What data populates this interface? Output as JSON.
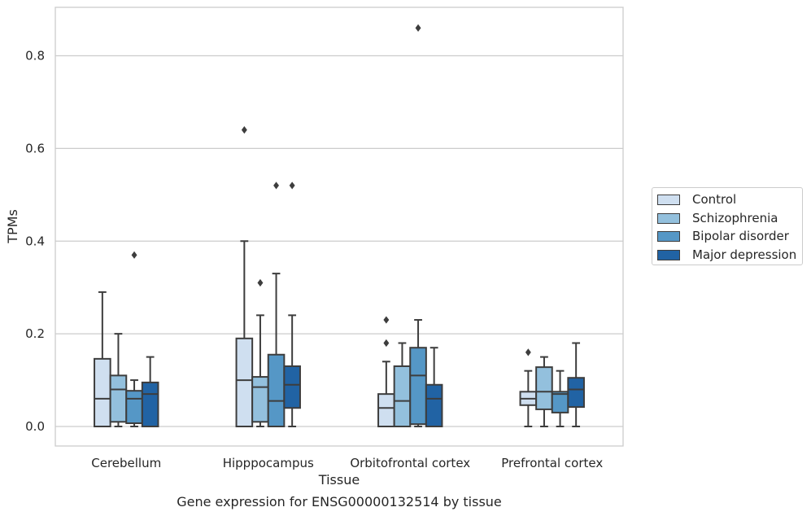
{
  "chart_data": {
    "type": "box",
    "title": "",
    "caption": "Gene expression for ENSG00000132514 by tissue",
    "xlabel": "Tissue",
    "ylabel": "TPMs",
    "ylim": [
      -0.04,
      0.905
    ],
    "yticks": [
      "0.0",
      "0.2",
      "0.4",
      "0.6",
      "0.8"
    ],
    "ytick_values": [
      0.0,
      0.2,
      0.4,
      0.6,
      0.8
    ],
    "grid": "horizontal",
    "legend_position": "right",
    "categories": [
      "Cerebellum",
      "Hipppocampus",
      "Orbitofrontal cortex",
      "Prefrontal cortex"
    ],
    "series": [
      {
        "name": "Control",
        "color": "#cfdff0",
        "boxes": [
          {
            "whislo": 0.0,
            "q1": 0.0,
            "med": 0.06,
            "q3": 0.146,
            "whishi": 0.29,
            "fliers": []
          },
          {
            "whislo": 0.0,
            "q1": 0.0,
            "med": 0.1,
            "q3": 0.19,
            "whishi": 0.4,
            "fliers": [
              0.64
            ]
          },
          {
            "whislo": 0.0,
            "q1": 0.0,
            "med": 0.04,
            "q3": 0.07,
            "whishi": 0.14,
            "fliers": [
              0.18,
              0.23
            ]
          },
          {
            "whislo": 0.0,
            "q1": 0.046,
            "med": 0.06,
            "q3": 0.075,
            "whishi": 0.12,
            "fliers": [
              0.16
            ]
          }
        ]
      },
      {
        "name": "Schizophrenia",
        "color": "#93c0dd",
        "boxes": [
          {
            "whislo": 0.0,
            "q1": 0.01,
            "med": 0.08,
            "q3": 0.11,
            "whishi": 0.2,
            "fliers": []
          },
          {
            "whislo": 0.0,
            "q1": 0.01,
            "med": 0.085,
            "q3": 0.107,
            "whishi": 0.24,
            "fliers": [
              0.31
            ]
          },
          {
            "whislo": 0.0,
            "q1": 0.0,
            "med": 0.055,
            "q3": 0.13,
            "whishi": 0.18,
            "fliers": []
          },
          {
            "whislo": 0.0,
            "q1": 0.037,
            "med": 0.075,
            "q3": 0.128,
            "whishi": 0.15,
            "fliers": []
          }
        ]
      },
      {
        "name": "Bipolar disorder",
        "color": "#5597c6",
        "boxes": [
          {
            "whislo": 0.0,
            "q1": 0.007,
            "med": 0.06,
            "q3": 0.077,
            "whishi": 0.1,
            "fliers": [
              0.37
            ]
          },
          {
            "whislo": 0.0,
            "q1": 0.0,
            "med": 0.055,
            "q3": 0.155,
            "whishi": 0.33,
            "fliers": [
              0.52
            ]
          },
          {
            "whislo": 0.0,
            "q1": 0.005,
            "med": 0.11,
            "q3": 0.17,
            "whishi": 0.23,
            "fliers": [
              0.86
            ]
          },
          {
            "whislo": 0.0,
            "q1": 0.03,
            "med": 0.07,
            "q3": 0.075,
            "whishi": 0.12,
            "fliers": []
          }
        ]
      },
      {
        "name": "Major depression",
        "color": "#2163a4",
        "boxes": [
          {
            "whislo": 0.0,
            "q1": 0.0,
            "med": 0.07,
            "q3": 0.095,
            "whishi": 0.15,
            "fliers": []
          },
          {
            "whislo": 0.0,
            "q1": 0.04,
            "med": 0.09,
            "q3": 0.13,
            "whishi": 0.24,
            "fliers": [
              0.52
            ]
          },
          {
            "whislo": 0.0,
            "q1": 0.0,
            "med": 0.06,
            "q3": 0.09,
            "whishi": 0.17,
            "fliers": []
          },
          {
            "whislo": 0.0,
            "q1": 0.042,
            "med": 0.08,
            "q3": 0.105,
            "whishi": 0.18,
            "fliers": []
          }
        ]
      }
    ]
  }
}
